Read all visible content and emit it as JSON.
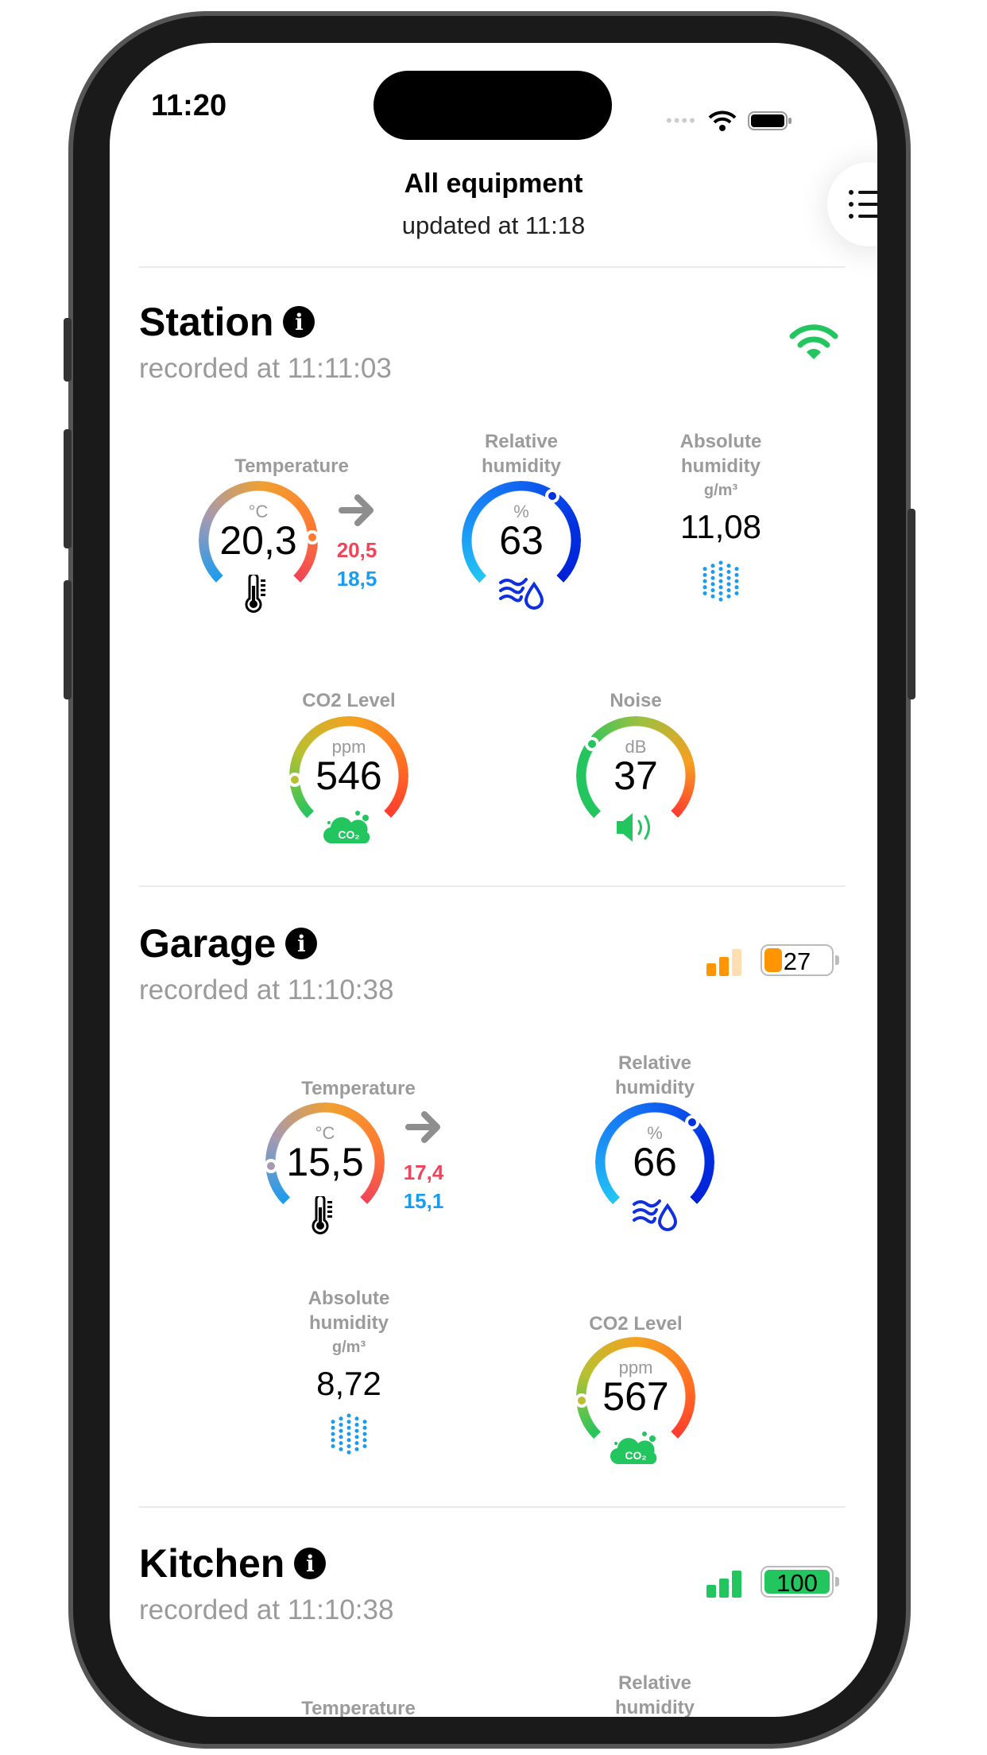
{
  "status_bar": {
    "time": "11:20"
  },
  "header": {
    "title": "All equipment",
    "subtitle": "updated at 11:18",
    "menu_icon": "list-icon"
  },
  "devices": [
    {
      "name": "Station",
      "recorded": "recorded at 11:11:03",
      "connection": "wifi",
      "connection_color": "#22c55e",
      "temperature": {
        "label": "Temperature",
        "unit": "°C",
        "value": "20,3",
        "max": "20,5",
        "min": "18,5",
        "gauge_fraction": 0.82
      },
      "relative_humidity": {
        "label_1": "Relative",
        "label_2": "humidity",
        "unit": "%",
        "value": "63",
        "gauge_fraction": 0.63
      },
      "absolute_humidity": {
        "label_1": "Absolute",
        "label_2": "humidity",
        "unit": "g/m³",
        "value": "11,08"
      },
      "co2": {
        "label": "CO2 Level",
        "unit": "ppm",
        "value": "546",
        "gauge_fraction": 0.15,
        "icon_text": "CO₂"
      },
      "noise": {
        "label": "Noise",
        "unit": "dB",
        "value": "37",
        "gauge_fraction": 0.3
      }
    },
    {
      "name": "Garage",
      "recorded": "recorded at 11:10:38",
      "signal_bars": 2,
      "signal_color": "#ff9500",
      "battery": "27",
      "battery_level": 0.27,
      "temperature": {
        "label": "Temperature",
        "unit": "°C",
        "value": "15,5",
        "max": "17,4",
        "min": "15,1",
        "gauge_fraction": 0.15
      },
      "relative_humidity": {
        "label_1": "Relative",
        "label_2": "humidity",
        "unit": "%",
        "value": "66",
        "gauge_fraction": 0.66
      },
      "absolute_humidity": {
        "label_1": "Absolute",
        "label_2": "humidity",
        "unit": "g/m³",
        "value": "8,72"
      },
      "co2": {
        "label": "CO2 Level",
        "unit": "ppm",
        "value": "567",
        "gauge_fraction": 0.15,
        "icon_text": "CO₂"
      }
    },
    {
      "name": "Kitchen",
      "recorded": "recorded at 11:10:38",
      "signal_bars": 3,
      "signal_color": "#22c55e",
      "battery": "100",
      "battery_level": 1.0,
      "temperature": {
        "label": "Temperature"
      },
      "relative_humidity": {
        "label_1": "Relative",
        "label_2": "humidity"
      }
    }
  ],
  "colors": {
    "max": "#f0445a",
    "min": "#1a9bf0",
    "label": "#9b9b9b",
    "accent_green": "#22c55e"
  }
}
